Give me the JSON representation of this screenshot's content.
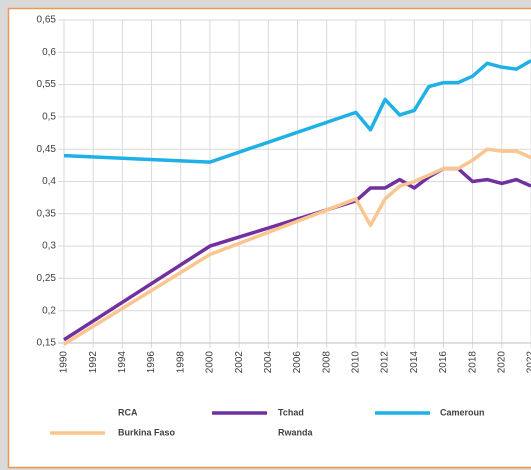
{
  "chart_data": {
    "type": "line",
    "x": [
      1990,
      2000,
      2010,
      2011,
      2012,
      2013,
      2014,
      2015,
      2016,
      2017,
      2018,
      2019,
      2020,
      2021,
      2022
    ],
    "series": [
      {
        "name": "RCA",
        "color": "#ffffff",
        "values": [
          null,
          null,
          null,
          null,
          null,
          null,
          null,
          null,
          null,
          null,
          null,
          null,
          null,
          null,
          null
        ]
      },
      {
        "name": "Tchad",
        "color": "#7030a0",
        "values": [
          0.155,
          0.3,
          0.37,
          0.39,
          0.39,
          0.403,
          0.39,
          0.407,
          0.42,
          0.42,
          0.4,
          0.403,
          0.397,
          0.403,
          0.393
        ]
      },
      {
        "name": "Cameroun",
        "color": "#1fb0e6",
        "values": [
          0.44,
          0.43,
          0.507,
          0.48,
          0.527,
          0.503,
          0.51,
          0.547,
          0.553,
          0.553,
          0.563,
          0.583,
          0.577,
          0.574,
          0.587
        ]
      },
      {
        "name": "Burkina Faso",
        "color": "#fac58f",
        "values": [
          0.148,
          0.287,
          0.373,
          0.332,
          0.373,
          0.393,
          0.4,
          0.41,
          0.42,
          0.42,
          0.433,
          0.45,
          0.447,
          0.447,
          0.437
        ]
      },
      {
        "name": "Rwanda",
        "color": "#ffffff",
        "values": [
          null,
          null,
          null,
          null,
          null,
          null,
          null,
          null,
          null,
          null,
          null,
          null,
          null,
          null,
          null
        ]
      }
    ],
    "xlim": [
      1990,
      2022
    ],
    "xticks": [
      1990,
      1992,
      1994,
      1996,
      1998,
      2000,
      2002,
      2004,
      2006,
      2008,
      2010,
      2012,
      2014,
      2016,
      2018,
      2020,
      2022
    ],
    "ylim": [
      0.15,
      0.65
    ],
    "yticks": [
      {
        "value": 0.15,
        "label": "0,15"
      },
      {
        "value": 0.2,
        "label": "0,2"
      },
      {
        "value": 0.25,
        "label": "0,25"
      },
      {
        "value": 0.3,
        "label": "0,3"
      },
      {
        "value": 0.35,
        "label": "0,35"
      },
      {
        "value": 0.4,
        "label": "0,4"
      },
      {
        "value": 0.45,
        "label": "0,45"
      },
      {
        "value": 0.5,
        "label": "0,5"
      },
      {
        "value": 0.55,
        "label": "0,55"
      },
      {
        "value": 0.6,
        "label": "0,6"
      },
      {
        "value": 0.65,
        "label": "0,65"
      }
    ],
    "grid": true,
    "legend": "bottom"
  }
}
